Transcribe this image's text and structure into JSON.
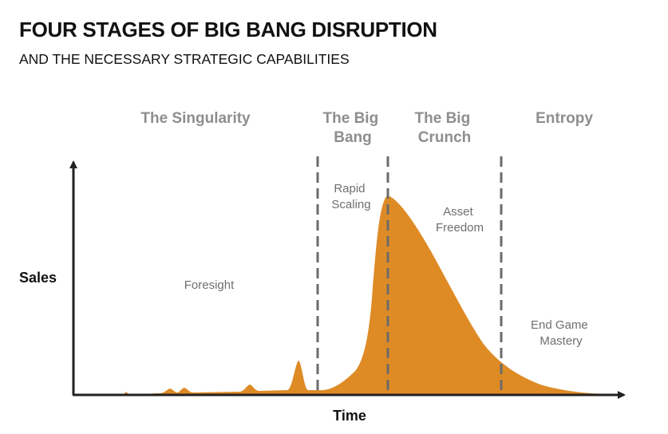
{
  "header": {
    "title": "FOUR STAGES OF BIG BANG DISRUPTION",
    "subtitle": "AND THE NECESSARY STRATEGIC CAPABILITIES"
  },
  "axes": {
    "x_label": "Time",
    "y_label": "Sales"
  },
  "stages": [
    {
      "line1": "The Singularity",
      "line2": ""
    },
    {
      "line1": "The Big",
      "line2": "Bang"
    },
    {
      "line1": "The Big",
      "line2": "Crunch"
    },
    {
      "line1": "Entropy",
      "line2": ""
    }
  ],
  "capabilities": [
    {
      "line1": "Foresight",
      "line2": ""
    },
    {
      "line1": "Rapid",
      "line2": "Scaling"
    },
    {
      "line1": "Asset",
      "line2": "Freedom"
    },
    {
      "line1": "End Game",
      "line2": "Mastery"
    }
  ],
  "colors": {
    "curve_fill": "#de8b26",
    "divider": "#6b6b6b",
    "axis": "#222222",
    "stage_text": "#8e8e8e",
    "capability_text": "#6f6f6f"
  }
}
